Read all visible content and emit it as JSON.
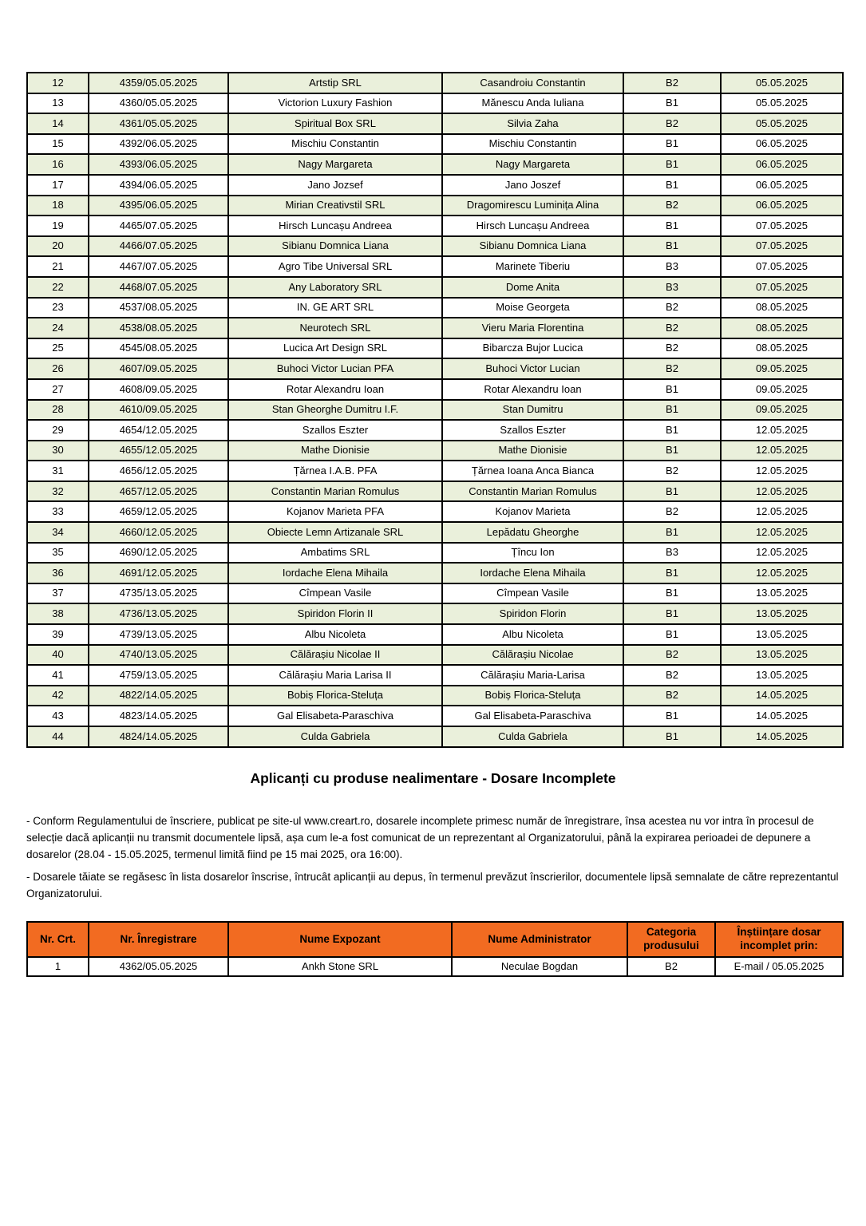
{
  "colors": {
    "row_alt_green": "#EAF0DB",
    "header_orange": "#F26B21",
    "border_black": "#000000"
  },
  "registration_table": {
    "rows": [
      [
        "12",
        "4359/05.05.2025",
        "Artstip SRL",
        "Casandroiu Constantin",
        "B2",
        "05.05.2025"
      ],
      [
        "13",
        "4360/05.05.2025",
        "Victorion Luxury Fashion",
        "Mănescu Anda Iuliana",
        "B1",
        "05.05.2025"
      ],
      [
        "14",
        "4361/05.05.2025",
        "Spiritual Box SRL",
        "Silvia Zaha",
        "B2",
        "05.05.2025"
      ],
      [
        "15",
        "4392/06.05.2025",
        "Mischiu Constantin",
        "Mischiu Constantin",
        "B1",
        "06.05.2025"
      ],
      [
        "16",
        "4393/06.05.2025",
        "Nagy Margareta",
        "Nagy Margareta",
        "B1",
        "06.05.2025"
      ],
      [
        "17",
        "4394/06.05.2025",
        "Jano Jozsef",
        "Jano Joszef",
        "B1",
        "06.05.2025"
      ],
      [
        "18",
        "4395/06.05.2025",
        "Mirian Creativstil SRL",
        "Dragomirescu Luminița Alina",
        "B2",
        "06.05.2025"
      ],
      [
        "19",
        "4465/07.05.2025",
        "Hirsch Luncașu Andreea",
        "Hirsch Luncașu Andreea",
        "B1",
        "07.05.2025"
      ],
      [
        "20",
        "4466/07.05.2025",
        "Sibianu Domnica Liana",
        "Sibianu Domnica Liana",
        "B1",
        "07.05.2025"
      ],
      [
        "21",
        "4467/07.05.2025",
        "Agro Tibe Universal SRL",
        "Marinete Tiberiu",
        "B3",
        "07.05.2025"
      ],
      [
        "22",
        "4468/07.05.2025",
        "Any Laboratory SRL",
        "Dome Anita",
        "B3",
        "07.05.2025"
      ],
      [
        "23",
        "4537/08.05.2025",
        "IN. GE ART SRL",
        "Moise Georgeta",
        "B2",
        "08.05.2025"
      ],
      [
        "24",
        "4538/08.05.2025",
        "Neurotech SRL",
        "Vieru Maria Florentina",
        "B2",
        "08.05.2025"
      ],
      [
        "25",
        "4545/08.05.2025",
        "Lucica Art Design SRL",
        "Bibarcza Bujor Lucica",
        "B2",
        "08.05.2025"
      ],
      [
        "26",
        "4607/09.05.2025",
        "Buhoci Victor Lucian PFA",
        "Buhoci Victor Lucian",
        "B2",
        "09.05.2025"
      ],
      [
        "27",
        "4608/09.05.2025",
        "Rotar Alexandru Ioan",
        "Rotar Alexandru Ioan",
        "B1",
        "09.05.2025"
      ],
      [
        "28",
        "4610/09.05.2025",
        "Stan Gheorghe Dumitru I.F.",
        "Stan  Dumitru",
        "B1",
        "09.05.2025"
      ],
      [
        "29",
        "4654/12.05.2025",
        "Szallos Eszter",
        "Szallos Eszter",
        "B1",
        "12.05.2025"
      ],
      [
        "30",
        "4655/12.05.2025",
        "Mathe Dionisie",
        "Mathe Dionisie",
        "B1",
        "12.05.2025"
      ],
      [
        "31",
        "4656/12.05.2025",
        "Țărnea I.A.B. PFA",
        "Țărnea Ioana Anca Bianca",
        "B2",
        "12.05.2025"
      ],
      [
        "32",
        "4657/12.05.2025",
        "Constantin Marian Romulus",
        "Constantin Marian Romulus",
        "B1",
        "12.05.2025"
      ],
      [
        "33",
        "4659/12.05.2025",
        "Kojanov Marieta PFA",
        "Kojanov Marieta",
        "B2",
        "12.05.2025"
      ],
      [
        "34",
        "4660/12.05.2025",
        "Obiecte Lemn Artizanale SRL",
        "Lepădatu Gheorghe",
        "B1",
        "12.05.2025"
      ],
      [
        "35",
        "4690/12.05.2025",
        "Ambatims SRL",
        "Țîncu Ion",
        "B3",
        "12.05.2025"
      ],
      [
        "36",
        "4691/12.05.2025",
        "Iordache Elena Mihaila",
        "Iordache Elena Mihaila",
        "B1",
        "12.05.2025"
      ],
      [
        "37",
        "4735/13.05.2025",
        "Cîmpean Vasile",
        "Cîmpean Vasile",
        "B1",
        "13.05.2025"
      ],
      [
        "38",
        "4736/13.05.2025",
        "Spiridon Florin II",
        "Spiridon Florin",
        "B1",
        "13.05.2025"
      ],
      [
        "39",
        "4739/13.05.2025",
        "Albu Nicoleta",
        "Albu Nicoleta",
        "B1",
        "13.05.2025"
      ],
      [
        "40",
        "4740/13.05.2025",
        "Călărașiu Nicolae II",
        "Călărașiu Nicolae",
        "B2",
        "13.05.2025"
      ],
      [
        "41",
        "4759/13.05.2025",
        "Călărașiu Maria Larisa II",
        "Călărașiu Maria-Larisa",
        "B2",
        "13.05.2025"
      ],
      [
        "42",
        "4822/14.05.2025",
        "Bobiș Florica-Steluța",
        "Bobiș Florica-Steluța",
        "B2",
        "14.05.2025"
      ],
      [
        "43",
        "4823/14.05.2025",
        "Gal Elisabeta-Paraschiva",
        "Gal Elisabeta-Paraschiva",
        "B1",
        "14.05.2025"
      ],
      [
        "44",
        "4824/14.05.2025",
        "Culda Gabriela",
        "Culda Gabriela",
        "B1",
        "14.05.2025"
      ]
    ]
  },
  "section_title": "Aplicanți cu produse nealimentare - Dosare Incomplete",
  "notes": [
    "- Conform Regulamentului de înscriere, publicat pe site-ul www.creart.ro, dosarele incomplete primesc număr de înregistrare, însa acestea nu vor intra în procesul de selecție dacă aplicanții nu transmit documentele lipsă, așa cum le-a fost comunicat de un reprezentant al Organizatorului, până la expirarea perioadei de depunere a dosarelor (28.04 - 15.05.2025, termenul limită fiind pe 15 mai 2025, ora 16:00).",
    "- Dosarele tăiate se regăsesc în lista dosarelor înscrise, întrucât aplicanții au depus, în termenul prevăzut înscrierilor, documentele lipsă semnalate de către reprezentantul Organizatorului."
  ],
  "incomplete_table": {
    "headers": [
      "Nr. Crt.",
      "Nr. Înregistrare",
      "Nume Expozant",
      "Nume Administrator",
      "Categoria produsului",
      "Înștiințare dosar incomplet prin:"
    ],
    "rows": [
      [
        "1",
        "4362/05.05.2025",
        "Ankh Stone SRL",
        "Neculae Bogdan",
        "B2",
        "E-mail / 05.05.2025"
      ]
    ]
  }
}
